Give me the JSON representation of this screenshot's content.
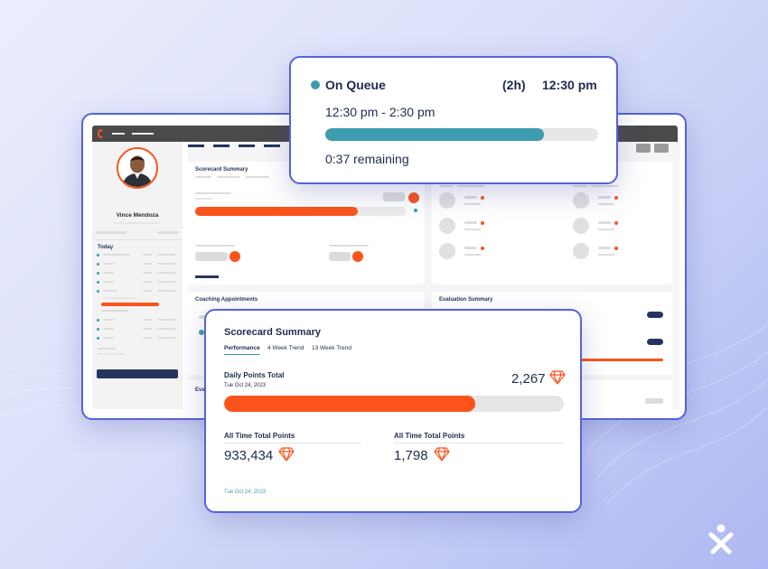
{
  "background_app": {
    "user_name": "Vince Mendoza",
    "today_label": "Today",
    "panels": {
      "scorecard_title": "Scorecard Summary",
      "coaching_title": "Coaching Appointments",
      "evaluation_title": "Evaluation Summary",
      "eval_partial": "Eval"
    }
  },
  "queue": {
    "status": "On Queue",
    "duration": "(2h)",
    "time": "12:30 pm",
    "range": "12:30 pm - 2:30 pm",
    "remaining": "0:37 remaining",
    "progress_fraction": 0.8
  },
  "scorecard": {
    "title": "Scorecard Summary",
    "tabs": [
      {
        "label": "Performance",
        "active": true
      },
      {
        "label": "4 Week Trend",
        "active": false
      },
      {
        "label": "13 Week Trend",
        "active": false
      }
    ],
    "daily": {
      "label": "Daily Points Total",
      "date": "Tue Oct 24, 2023",
      "value": "2,267",
      "progress_fraction": 0.74
    },
    "all_time_1": {
      "label": "All Time Total Points",
      "value": "933,434"
    },
    "all_time_2": {
      "label": "All Time Total Points",
      "value": "1,798"
    },
    "footer_date": "Tue Oct 24, 2023"
  },
  "colors": {
    "accent_orange": "#fa541c",
    "accent_teal": "#3d9cad",
    "navy": "#26355d",
    "frame_blue": "#5563d8"
  },
  "icons": [
    "diamond-icon",
    "brand-logo-icon",
    "app-logo-icon"
  ]
}
